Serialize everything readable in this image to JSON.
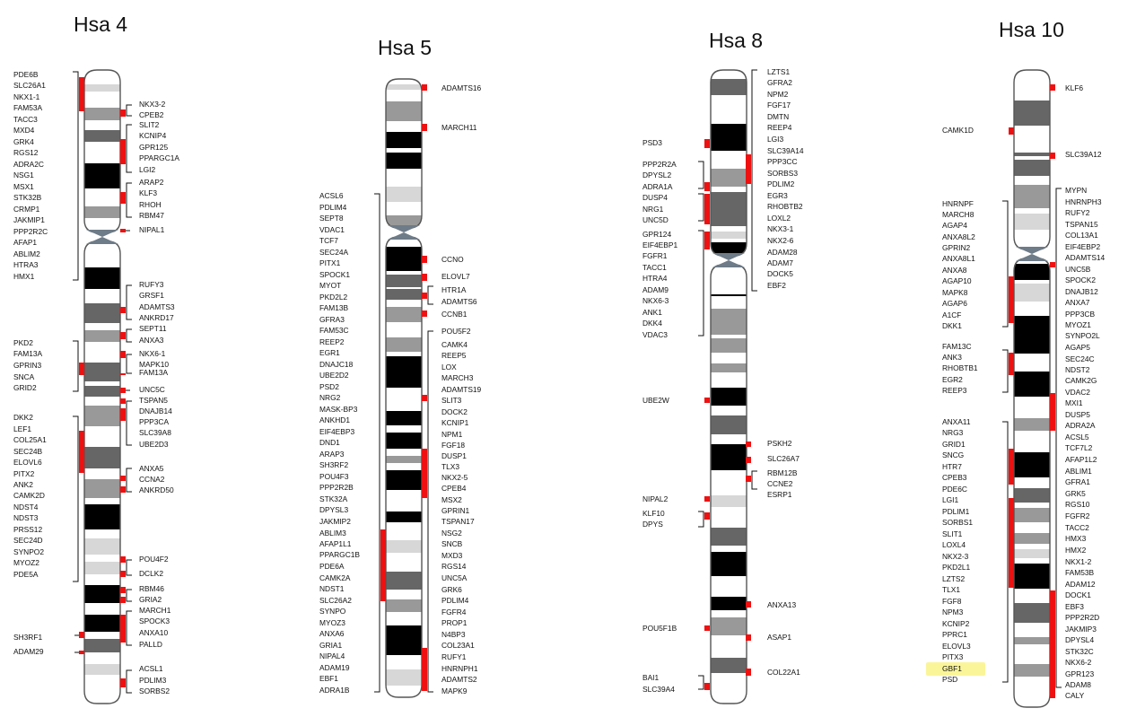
{
  "chromosomes": [
    {
      "title": "Hsa 4",
      "left_genes": [
        "PDE6B",
        "SLC26A1",
        "NKX1-1",
        "FAM53A",
        "TACC3",
        "MXD4",
        "GRK4",
        "RGS12",
        "ADRA2C",
        "NSG1",
        "MSX1",
        "STK32B",
        "CRMP1",
        "JAKMIP1",
        "PPP2R2C",
        "AFAP1",
        "ABLIM2",
        "HTRA3",
        "HMX1",
        "PKD2",
        "FAM13A",
        "GPRIN3",
        "SNCA",
        "GRID2",
        "DKK2",
        "LEF1",
        "COL25A1",
        "SEC24B",
        "ELOVL6",
        "PITX2",
        "ANK2",
        "CAMK2D",
        "NDST4",
        "NDST3",
        "PRSS12",
        "SEC24D",
        "SYNPO2",
        "MYOZ2",
        "PDE5A",
        "SH3RF1",
        "ADAM29"
      ],
      "right_genes": [
        "NKX3-2",
        "CPEB2",
        "SLIT2",
        "KCNIP4",
        "GPR125",
        "PPARGC1A",
        "LGI2",
        "ARAP2",
        "KLF3",
        "RHOH",
        "RBM47",
        "NIPAL1",
        "RUFY3",
        "GRSF1",
        "ADAMTS3",
        "ANKRD17",
        "SEPT11",
        "ANXA3",
        "NKX6-1",
        "MAPK10",
        "FAM13A",
        "UNC5C",
        "TSPAN5",
        "DNAJB14",
        "PPP3CA",
        "SLC39A8",
        "UBE2D3",
        "ANXA5",
        "CCNA2",
        "ANKRD50",
        "POU4F2",
        "DCLK2",
        "RBM46",
        "GRIA2",
        "MARCH1",
        "SPOCK3",
        "ANXA10",
        "PALLD",
        "ACSL1",
        "PDLIM3",
        "SORBS2"
      ]
    },
    {
      "title": "Hsa 5",
      "left_genes": [
        "ACSL6",
        "PDLIM4",
        "SEPT8",
        "VDAC1",
        "TCF7",
        "SEC24A",
        "PITX1",
        "SPOCK1",
        "MYOT",
        "PKD2L2",
        "FAM13B",
        "GFRA3",
        "FAM53C",
        "REEP2",
        "EGR1",
        "DNAJC18",
        "UBE2D2",
        "PSD2",
        "NRG2",
        "MASK-BP3",
        "ANKHD1",
        "EIF4EBP3",
        "DND1",
        "ARAP3",
        "SH3RF2",
        "POU4F3",
        "PPP2R2B",
        "STK32A",
        "DPYSL3",
        "JAKMIP2",
        "ABLIM3",
        "AFAP1L1",
        "PPARGC1B",
        "PDE6A",
        "CAMK2A",
        "NDST1",
        "SLC26A2",
        "SYNPO",
        "MYOZ3",
        "ANXA6",
        "GRIA1",
        "NIPAL4",
        "ADAM19",
        "EBF1",
        "ADRA1B"
      ],
      "right_genes": [
        "ADAMTS16",
        "MARCH11",
        "CCNO",
        "ELOVL7",
        "HTR1A",
        "ADAMTS6",
        "CCNB1",
        "POU5F2",
        "CAMK4",
        "REEP5",
        "LOX",
        "MARCH3",
        "ADAMTS19",
        "SLIT3",
        "DOCK2",
        "KCNIP1",
        "NPM1",
        "FGF18",
        "DUSP1",
        "TLX3",
        "NKX2-5",
        "CPEB4",
        "MSX2",
        "GPRIN1",
        "TSPAN17",
        "NSG2",
        "SNCB",
        "MXD3",
        "RGS14",
        "UNC5A",
        "GRK6",
        "PDLIM4",
        "FGFR4",
        "PROP1",
        "N4BP3",
        "COL23A1",
        "RUFY1",
        "HNRNPH1",
        "ADAMTS2",
        "MAPK9"
      ]
    },
    {
      "title": "Hsa 8",
      "left_genes": [
        "PSD3",
        "PPP2R2A",
        "DPYSL2",
        "ADRA1A",
        "DUSP4",
        "NRG1",
        "UNC5D",
        "GPR124",
        "EIF4EBP1",
        "FGFR1",
        "TACC1",
        "HTRA4",
        "ADAM9",
        "NKX6-3",
        "ANK1",
        "DKK4",
        "VDAC3",
        "UBE2W",
        "NIPAL2",
        "KLF10",
        "DPYS",
        "POU5F1B",
        "BAI1",
        "SLC39A4"
      ],
      "right_genes": [
        "LZTS1",
        "GFRA2",
        "NPM2",
        "FGF17",
        "DMTN",
        "REEP4",
        "LGI3",
        "SLC39A14",
        "PPP3CC",
        "SORBS3",
        "PDLIM2",
        "EGR3",
        "RHOBTB2",
        "LOXL2",
        "NKX3-1",
        "NKX2-6",
        "ADAM28",
        "ADAM7",
        "DOCK5",
        "EBF2",
        "PSKH2",
        "SLC26A7",
        "RBM12B",
        "CCNE2",
        "ESRP1",
        "ANXA13",
        "ASAP1",
        "COL22A1"
      ]
    },
    {
      "title": "Hsa 10",
      "left_genes": [
        "CAMK1D",
        "HNRNPF",
        "MARCH8",
        "AGAP4",
        "ANXA8L2",
        "GPRIN2",
        "ANXA8L1",
        "ANXA8",
        "AGAP10",
        "MAPK8",
        "AGAP6",
        "A1CF",
        "DKK1",
        "FAM13C",
        "ANK3",
        "RHOBTB1",
        "EGR2",
        "REEP3",
        "ANXA11",
        "NRG3",
        "GRID1",
        "SNCG",
        "HTR7",
        "CPEB3",
        "PDE6C",
        "LGI1",
        "PDLIM1",
        "SORBS1",
        "SLIT1",
        "LOXL4",
        "NKX2-3",
        "PKD2L1",
        "LZTS2",
        "TLX1",
        "FGF8",
        "NPM3",
        "KCNIP2",
        "PPRC1",
        "ELOVL3",
        "PITX3",
        "GBF1",
        "PSD"
      ],
      "right_genes": [
        "KLF6",
        "SLC39A12",
        "MYPN",
        "HNRNPH3",
        "RUFY2",
        "TSPAN15",
        "COL13A1",
        "EIF4EBP2",
        "ADAMTS14",
        "UNC5B",
        "SPOCK2",
        "DNAJB12",
        "ANXA7",
        "PPP3CB",
        "MYOZ1",
        "SYNPO2L",
        "AGAP5",
        "SEC24C",
        "NDST2",
        "CAMK2G",
        "VDAC2",
        "MXI1",
        "DUSP5",
        "ADRA2A",
        "ACSL5",
        "TCF7L2",
        "AFAP1L2",
        "ABLIM1",
        "GFRA1",
        "GRK5",
        "RGS10",
        "FGFR2",
        "TACC2",
        "HMX3",
        "HMX2",
        "NKX1-2",
        "FAM53B",
        "ADAM12",
        "DOCK1",
        "EBF3",
        "PPP2R2D",
        "JAKMIP3",
        "DPYSL4",
        "STK32C",
        "NKX6-2",
        "GPR123",
        "ADAM8",
        "CALY"
      ]
    }
  ],
  "colors": {
    "marker": "#ee1111",
    "highlight": "#fbf59a",
    "band_dark": "#000000",
    "band_mid": "#666666",
    "band_light": "#999999",
    "band_pale": "#d7d7d7"
  }
}
